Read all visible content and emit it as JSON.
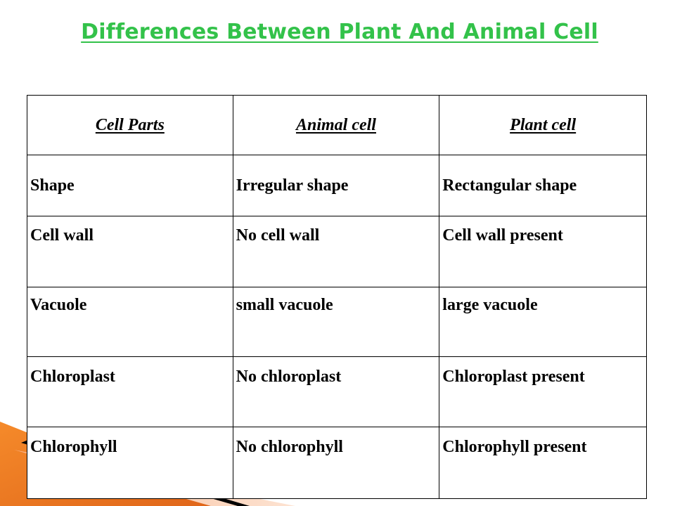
{
  "title": "Differences Between Plant And Animal Cell",
  "table": {
    "headers": [
      "Cell Parts",
      "Animal cell",
      "Plant cell"
    ],
    "rows": [
      [
        "Shape",
        "Irregular shape",
        "Rectangular shape"
      ],
      [
        "Cell wall",
        "No cell wall",
        "Cell wall present"
      ],
      [
        "Vacuole",
        "small vacuole",
        "large vacuole"
      ],
      [
        "Chloroplast",
        "No chloroplast",
        "Chloroplast present"
      ],
      [
        "Chlorophyll",
        "No chlorophyll",
        "Chlorophyll present"
      ]
    ]
  },
  "colors": {
    "title": "#33c24a",
    "accent_orange": "#f07a1c",
    "accent_peach": "#f9cdb0",
    "border": "#000000"
  }
}
